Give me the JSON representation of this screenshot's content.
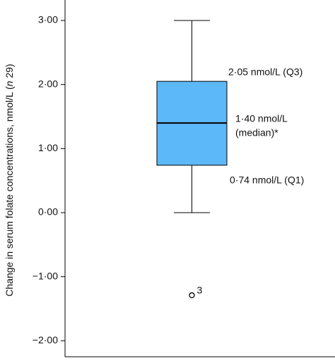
{
  "chart_data": {
    "type": "box",
    "ylabel": [
      "Change in serum folate concentrations, nmol/L (",
      "n",
      " 29)"
    ],
    "ylim": [
      -2.25,
      3.32
    ],
    "yticks": [
      {
        "value": 3,
        "label": "3·00"
      },
      {
        "value": 2,
        "label": "2·00"
      },
      {
        "value": 1,
        "label": "1·00"
      },
      {
        "value": 0,
        "label": "0·00"
      },
      {
        "value": -1,
        "label": "−1·00"
      },
      {
        "value": -2,
        "label": "−2·00"
      }
    ],
    "color": "#5cb8f8",
    "box": {
      "min": 0,
      "q1": 0.74,
      "median": 1.4,
      "q3": 2.05,
      "max": 3.0,
      "outliers": [
        {
          "value": -1.29,
          "label": "3"
        }
      ]
    },
    "annotations": {
      "q3": "2·05 nmol/L (Q3)",
      "median": [
        "1·40 nmol/L",
        "(median)*"
      ],
      "q1": "0·74 nmol/L (Q1)"
    }
  }
}
